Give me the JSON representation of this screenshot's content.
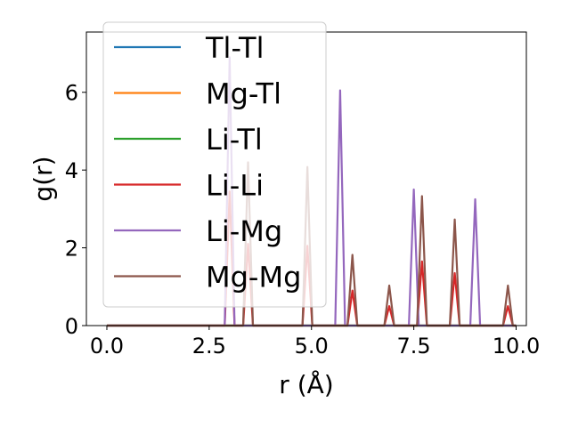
{
  "chart_data": {
    "type": "line",
    "title": "",
    "xlabel": "r (Å)",
    "ylabel": "g(r)",
    "xlim": [
      -0.5,
      10.25
    ],
    "ylim": [
      0,
      7.55
    ],
    "xticks": [
      0.0,
      2.5,
      5.0,
      7.5,
      10.0
    ],
    "xtick_labels": [
      "0.0",
      "2.5",
      "5.0",
      "7.5",
      "10.0"
    ],
    "yticks": [
      0,
      2,
      4,
      6
    ],
    "ytick_labels": [
      "0",
      "2",
      "4",
      "6"
    ],
    "legend_position": "top-left",
    "grid": false,
    "peak_half_width": 0.12,
    "series": [
      {
        "name": "Tl-Tl",
        "color": "#1f77b4",
        "peaks": []
      },
      {
        "name": "Mg-Tl",
        "color": "#ff7f0e",
        "peaks": []
      },
      {
        "name": "Li-Tl",
        "color": "#2ca02c",
        "peaks": []
      },
      {
        "name": "Li-Li",
        "color": "#d62728",
        "peaks": [
          [
            3.0,
            3.45
          ],
          [
            3.45,
            2.1
          ],
          [
            4.9,
            2.05
          ],
          [
            6.0,
            0.9
          ],
          [
            6.9,
            0.5
          ],
          [
            7.7,
            1.65
          ],
          [
            8.5,
            1.35
          ],
          [
            9.8,
            0.5
          ]
        ]
      },
      {
        "name": "Li-Mg",
        "color": "#9467bd",
        "peaks": [
          [
            3.0,
            6.9
          ],
          [
            5.7,
            6.05
          ],
          [
            7.5,
            3.5
          ],
          [
            9.0,
            3.25
          ]
        ]
      },
      {
        "name": "Mg-Mg",
        "color": "#8c564b",
        "peaks": [
          [
            3.45,
            4.2
          ],
          [
            4.9,
            4.08
          ],
          [
            6.0,
            1.82
          ],
          [
            6.9,
            1.03
          ],
          [
            7.7,
            3.33
          ],
          [
            8.5,
            2.73
          ],
          [
            9.8,
            1.03
          ]
        ]
      }
    ]
  }
}
